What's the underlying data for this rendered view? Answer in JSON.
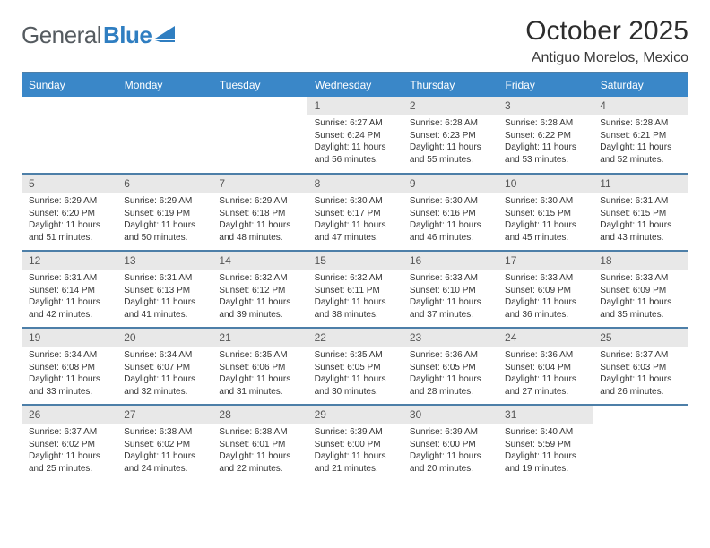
{
  "logo": {
    "text1": "General",
    "text2": "Blue"
  },
  "title": "October 2025",
  "location": "Antiguo Morelos, Mexico",
  "dayHeaders": [
    "Sunday",
    "Monday",
    "Tuesday",
    "Wednesday",
    "Thursday",
    "Friday",
    "Saturday"
  ],
  "colors": {
    "headerBg": "#3a87c8",
    "headerText": "#ffffff",
    "dayNumBg": "#e8e8e8",
    "rowDivider": "#4d7fa8",
    "logoGray": "#555b60",
    "logoBlue": "#2f7ec1"
  },
  "weeks": [
    [
      null,
      null,
      null,
      {
        "d": "1",
        "r": "6:27 AM",
        "s": "6:24 PM",
        "h": "11",
        "m": "56"
      },
      {
        "d": "2",
        "r": "6:28 AM",
        "s": "6:23 PM",
        "h": "11",
        "m": "55"
      },
      {
        "d": "3",
        "r": "6:28 AM",
        "s": "6:22 PM",
        "h": "11",
        "m": "53"
      },
      {
        "d": "4",
        "r": "6:28 AM",
        "s": "6:21 PM",
        "h": "11",
        "m": "52"
      }
    ],
    [
      {
        "d": "5",
        "r": "6:29 AM",
        "s": "6:20 PM",
        "h": "11",
        "m": "51"
      },
      {
        "d": "6",
        "r": "6:29 AM",
        "s": "6:19 PM",
        "h": "11",
        "m": "50"
      },
      {
        "d": "7",
        "r": "6:29 AM",
        "s": "6:18 PM",
        "h": "11",
        "m": "48"
      },
      {
        "d": "8",
        "r": "6:30 AM",
        "s": "6:17 PM",
        "h": "11",
        "m": "47"
      },
      {
        "d": "9",
        "r": "6:30 AM",
        "s": "6:16 PM",
        "h": "11",
        "m": "46"
      },
      {
        "d": "10",
        "r": "6:30 AM",
        "s": "6:15 PM",
        "h": "11",
        "m": "45"
      },
      {
        "d": "11",
        "r": "6:31 AM",
        "s": "6:15 PM",
        "h": "11",
        "m": "43"
      }
    ],
    [
      {
        "d": "12",
        "r": "6:31 AM",
        "s": "6:14 PM",
        "h": "11",
        "m": "42"
      },
      {
        "d": "13",
        "r": "6:31 AM",
        "s": "6:13 PM",
        "h": "11",
        "m": "41"
      },
      {
        "d": "14",
        "r": "6:32 AM",
        "s": "6:12 PM",
        "h": "11",
        "m": "39"
      },
      {
        "d": "15",
        "r": "6:32 AM",
        "s": "6:11 PM",
        "h": "11",
        "m": "38"
      },
      {
        "d": "16",
        "r": "6:33 AM",
        "s": "6:10 PM",
        "h": "11",
        "m": "37"
      },
      {
        "d": "17",
        "r": "6:33 AM",
        "s": "6:09 PM",
        "h": "11",
        "m": "36"
      },
      {
        "d": "18",
        "r": "6:33 AM",
        "s": "6:09 PM",
        "h": "11",
        "m": "35"
      }
    ],
    [
      {
        "d": "19",
        "r": "6:34 AM",
        "s": "6:08 PM",
        "h": "11",
        "m": "33"
      },
      {
        "d": "20",
        "r": "6:34 AM",
        "s": "6:07 PM",
        "h": "11",
        "m": "32"
      },
      {
        "d": "21",
        "r": "6:35 AM",
        "s": "6:06 PM",
        "h": "11",
        "m": "31"
      },
      {
        "d": "22",
        "r": "6:35 AM",
        "s": "6:05 PM",
        "h": "11",
        "m": "30"
      },
      {
        "d": "23",
        "r": "6:36 AM",
        "s": "6:05 PM",
        "h": "11",
        "m": "28"
      },
      {
        "d": "24",
        "r": "6:36 AM",
        "s": "6:04 PM",
        "h": "11",
        "m": "27"
      },
      {
        "d": "25",
        "r": "6:37 AM",
        "s": "6:03 PM",
        "h": "11",
        "m": "26"
      }
    ],
    [
      {
        "d": "26",
        "r": "6:37 AM",
        "s": "6:02 PM",
        "h": "11",
        "m": "25"
      },
      {
        "d": "27",
        "r": "6:38 AM",
        "s": "6:02 PM",
        "h": "11",
        "m": "24"
      },
      {
        "d": "28",
        "r": "6:38 AM",
        "s": "6:01 PM",
        "h": "11",
        "m": "22"
      },
      {
        "d": "29",
        "r": "6:39 AM",
        "s": "6:00 PM",
        "h": "11",
        "m": "21"
      },
      {
        "d": "30",
        "r": "6:39 AM",
        "s": "6:00 PM",
        "h": "11",
        "m": "20"
      },
      {
        "d": "31",
        "r": "6:40 AM",
        "s": "5:59 PM",
        "h": "11",
        "m": "19"
      },
      null
    ]
  ],
  "labels": {
    "sunrise": "Sunrise: ",
    "sunset": "Sunset: ",
    "daylight": "Daylight: ",
    "hoursAnd": " hours and ",
    "minutes": " minutes."
  }
}
